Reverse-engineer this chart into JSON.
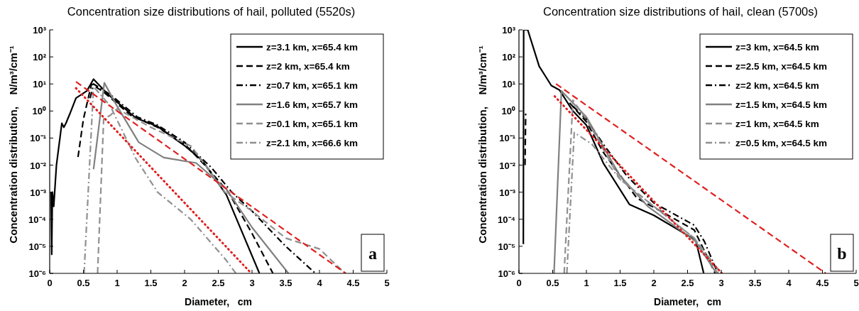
{
  "chart_data": [
    {
      "type": "line",
      "title": "Concentration size distributions of hail, polluted (5520s)",
      "xlabel": "Diameter,   cm",
      "ylabel": "Concentration distribution,    N/m³/cm⁻¹",
      "xlim": [
        0,
        5
      ],
      "ylim": [
        1e-06,
        1000
      ],
      "log": "y",
      "grid": false,
      "legend": "top right",
      "xticks": [
        0,
        0.5,
        1,
        1.5,
        2,
        2.5,
        3,
        3.5,
        4,
        4.5,
        5
      ],
      "yticks": [
        {
          "value": 1e-06,
          "label": "10⁻⁶"
        },
        {
          "value": 1e-05,
          "label": "10⁻⁵"
        },
        {
          "value": 0.0001,
          "label": "10⁻⁴"
        },
        {
          "value": 0.001,
          "label": "10⁻³"
        },
        {
          "value": 0.01,
          "label": "10⁻²"
        },
        {
          "value": 0.1,
          "label": "10⁻¹"
        },
        {
          "value": 1,
          "label": "10⁰"
        },
        {
          "value": 10,
          "label": "10¹"
        },
        {
          "value": 100,
          "label": "10²"
        },
        {
          "value": 1000,
          "label": "10³"
        }
      ],
      "annotations": [
        "a"
      ],
      "series": [
        {
          "name": "z=3.1 km, x=65.4 km",
          "color": "#000000",
          "line_style": "solid",
          "x": [
            0.02,
            0.03,
            0.04,
            0.06,
            0.1,
            0.18,
            0.21,
            0.24,
            0.3,
            0.39,
            0.55,
            0.65,
            0.87,
            1.28,
            1.6,
            2.01,
            2.26,
            2.62,
            3.11
          ],
          "values": [
            0.001,
            5e-06,
            0.001,
            0.0003,
            0.01,
            0.35,
            0.25,
            0.35,
            0.8,
            3,
            5.5,
            15,
            4,
            0.55,
            0.27,
            0.05,
            0.015,
            0.0008,
            1e-06
          ]
        },
        {
          "name": "z=2 km, x=65.4 km",
          "color": "#000000",
          "line_style": "dashed",
          "x": [
            0.42,
            0.5,
            0.62,
            0.8,
            1.2,
            1.6,
            2.0,
            2.3,
            2.65,
            3.0,
            3.31
          ],
          "values": [
            0.02,
            0.5,
            10,
            5,
            0.7,
            0.25,
            0.06,
            0.01,
            0.001,
            3e-05,
            1e-06
          ]
        },
        {
          "name": "z=0.7 km, x=65.1 km",
          "color": "#000000",
          "line_style": "dashdot",
          "x": [
            0.6,
            0.65,
            0.9,
            1.3,
            1.6,
            2.0,
            2.4,
            2.7,
            3.0,
            3.5,
            3.94
          ],
          "values": [
            3,
            10,
            4,
            0.6,
            0.3,
            0.07,
            0.008,
            0.001,
            0.0002,
            1e-05,
            1e-06
          ]
        },
        {
          "name": "z=1.6 km, x=65.7 km",
          "color": "#808080",
          "line_style": "solid",
          "x": [
            0.65,
            0.81,
            1.0,
            1.32,
            1.69,
            2.17,
            2.62,
            3.0,
            3.54
          ],
          "values": [
            0.007,
            11,
            1.5,
            0.07,
            0.019,
            0.012,
            0.0013,
            5e-05,
            1e-06
          ]
        },
        {
          "name": "z=0.1 km, x=65.1 km",
          "color": "#909090",
          "line_style": "dashed",
          "x": [
            0.71,
            0.8,
            0.9,
            1.0,
            1.5,
            2.1,
            2.6,
            3.0,
            3.5,
            4.0,
            4.38
          ],
          "values": [
            1e-06,
            0.5,
            0.7,
            1.2,
            0.25,
            0.05,
            0.001,
            0.0002,
            2e-05,
            8e-06,
            1e-06
          ]
        },
        {
          "name": "z=2.1 km, x=66.6 km",
          "color": "#909090",
          "line_style": "dashdot",
          "x": [
            0.51,
            0.65,
            0.9,
            1.28,
            1.6,
            2.09,
            2.62,
            2.76
          ],
          "values": [
            1e-06,
            8,
            1.5,
            0.017,
            0.001,
            0.0001,
            3e-06,
            1e-06
          ]
        },
        {
          "type": "line",
          "color": "#e02020",
          "line_style": "dashed",
          "x": [
            0.39,
            4.39
          ],
          "values": [
            12,
            1e-06
          ]
        },
        {
          "type": "line",
          "color": "#e02020",
          "line_style": "dotted",
          "x": [
            0.39,
            2.99
          ],
          "values": [
            7,
            1e-06
          ]
        }
      ]
    },
    {
      "type": "line",
      "title": "Concentration size distributions of hail, clean (5700s)",
      "xlabel": "Diameter,   cm",
      "ylabel": "Concentration distribution,    N/m³/cm⁻¹",
      "xlim": [
        0,
        5
      ],
      "ylim": [
        1e-06,
        1000
      ],
      "log": "y",
      "grid": false,
      "legend": "top right",
      "xticks": [
        0,
        0.5,
        1,
        1.5,
        2,
        2.5,
        3,
        3.5,
        4,
        4.5,
        5
      ],
      "yticks": [
        {
          "value": 1e-06,
          "label": "10⁻⁶"
        },
        {
          "value": 1e-05,
          "label": "10⁻⁵"
        },
        {
          "value": 0.0001,
          "label": "10⁻⁴"
        },
        {
          "value": 0.001,
          "label": "10⁻³"
        },
        {
          "value": 0.01,
          "label": "10⁻²"
        },
        {
          "value": 0.1,
          "label": "10⁻¹"
        },
        {
          "value": 1,
          "label": "10⁰"
        },
        {
          "value": 10,
          "label": "10¹"
        },
        {
          "value": 100,
          "label": "10²"
        },
        {
          "value": 1000,
          "label": "10³"
        }
      ],
      "annotations": [
        "b"
      ],
      "series": [
        {
          "name": "z=3 km, x=64.5 km",
          "color": "#000000",
          "line_style": "solid",
          "x": [
            0.065,
            0.07,
            0.13,
            0.3,
            0.48,
            0.6,
            0.8,
            1.0,
            1.25,
            1.64,
            2.0,
            2.62,
            2.74
          ],
          "values": [
            1.2e-05,
            1000,
            1000,
            45,
            8.7,
            6,
            1,
            0.3,
            0.012,
            0.00035,
            0.00014,
            1.7e-05,
            1e-06
          ]
        },
        {
          "name": "z=2.5 km, x=64.5 km",
          "color": "#000000",
          "line_style": "dashed",
          "x": [
            0.09,
            0.1,
            0.105,
            0.75,
            1.0,
            1.25,
            1.75,
            2.1,
            2.6,
            2.91
          ],
          "values": [
            0.01,
            0.8,
            null,
            2,
            0.4,
            0.03,
            0.0006,
            0.0002,
            4e-05,
            1e-06
          ]
        },
        {
          "name": "z=2 km, x=64.5 km",
          "color": "#000000",
          "line_style": "dashdot",
          "x": [
            0.8,
            1.0,
            1.25,
            1.6,
            2.0,
            2.6,
            2.75,
            2.95
          ],
          "values": [
            1.5,
            0.5,
            0.06,
            0.004,
            0.0004,
            6e-05,
            1.5e-05,
            1e-06
          ]
        },
        {
          "name": "z=1.5 km, x=64.5 km",
          "color": "#808080",
          "line_style": "solid",
          "x": [
            0.52,
            0.63,
            1.0,
            1.5,
            1.91,
            2.62,
            2.93
          ],
          "values": [
            1e-06,
            5.5,
            0.6,
            0.004,
            0.0003,
            1.5e-05,
            1e-06
          ]
        },
        {
          "name": "z=1 km, x=64.5 km",
          "color": "#909090",
          "line_style": "dashed",
          "x": [
            0.67,
            0.8,
            1.0,
            1.5,
            2.0,
            2.6,
            2.95
          ],
          "values": [
            1e-06,
            2.5,
            0.5,
            0.003,
            0.0003,
            2e-05,
            1e-06
          ]
        },
        {
          "name": "z=0.5 km, x=64.5 km",
          "color": "#909090",
          "line_style": "dashdot",
          "x": [
            0.71,
            0.82,
            1.08,
            1.5,
            2.0,
            2.6,
            3.0
          ],
          "values": [
            1e-06,
            0.16,
            0.06,
            0.003,
            0.0003,
            2e-05,
            1e-06
          ]
        },
        {
          "type": "line",
          "color": "#e02020",
          "line_style": "dashed",
          "x": [
            0.55,
            4.55
          ],
          "values": [
            10,
            1e-06
          ]
        },
        {
          "type": "line",
          "color": "#e02020",
          "line_style": "dotted",
          "x": [
            0.53,
            3.01
          ],
          "values": [
            3.5,
            1e-06
          ]
        }
      ]
    }
  ]
}
